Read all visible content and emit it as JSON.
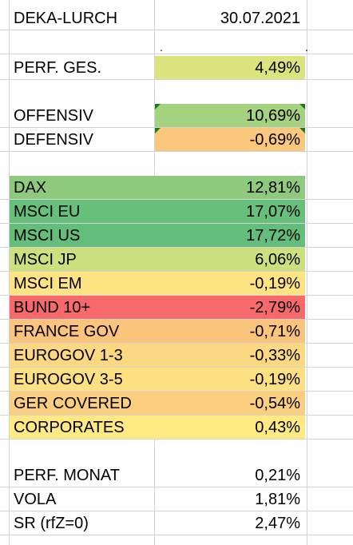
{
  "header": {
    "title": "DEKA-LURCH",
    "date": "30.07.2021"
  },
  "marker_row": {
    "left_mark": ".",
    "right_mark": "."
  },
  "total": {
    "label": "PERF. GES.",
    "value": "4,49%",
    "color": "#dbe47d"
  },
  "strategy": [
    {
      "label": "OFFENSIV",
      "value": "10,69%",
      "color": "#a5d27e",
      "has_comment_marker": true
    },
    {
      "label": "DEFENSIV",
      "value": "-0,69%",
      "color": "#fbc77d",
      "has_comment_marker": true
    }
  ],
  "assets": [
    {
      "label": "DAX",
      "value": "12,81%",
      "color": "#8ec97e"
    },
    {
      "label": "MSCI EU",
      "value": "17,07%",
      "color": "#67bf7c"
    },
    {
      "label": "MSCI US",
      "value": "17,72%",
      "color": "#63be7b"
    },
    {
      "label": "MSCI JP",
      "value": "6,06%",
      "color": "#cde07e"
    },
    {
      "label": "MSCI EM",
      "value": "-0,19%",
      "color": "#fee382"
    },
    {
      "label": "BUND 10+",
      "value": "-2,79%",
      "color": "#f8696b"
    },
    {
      "label": "FRANCE GOV",
      "value": "-0,71%",
      "color": "#fbc47d"
    },
    {
      "label": "EUROGOV 1-3",
      "value": "-0,33%",
      "color": "#fcd880"
    },
    {
      "label": "EUROGOV 3-5",
      "value": "-0,19%",
      "color": "#fde081"
    },
    {
      "label": "GER COVERED",
      "value": "-0,54%",
      "color": "#fbcf7f"
    },
    {
      "label": "CORPORATES",
      "value": "0,43%",
      "color": "#fee983"
    }
  ],
  "stats": [
    {
      "label": "PERF. MONAT",
      "value": "0,21%"
    },
    {
      "label": "VOLA",
      "value": "1,81%"
    },
    {
      "label": "SR (rfZ=0)",
      "value": "2,47%"
    }
  ]
}
